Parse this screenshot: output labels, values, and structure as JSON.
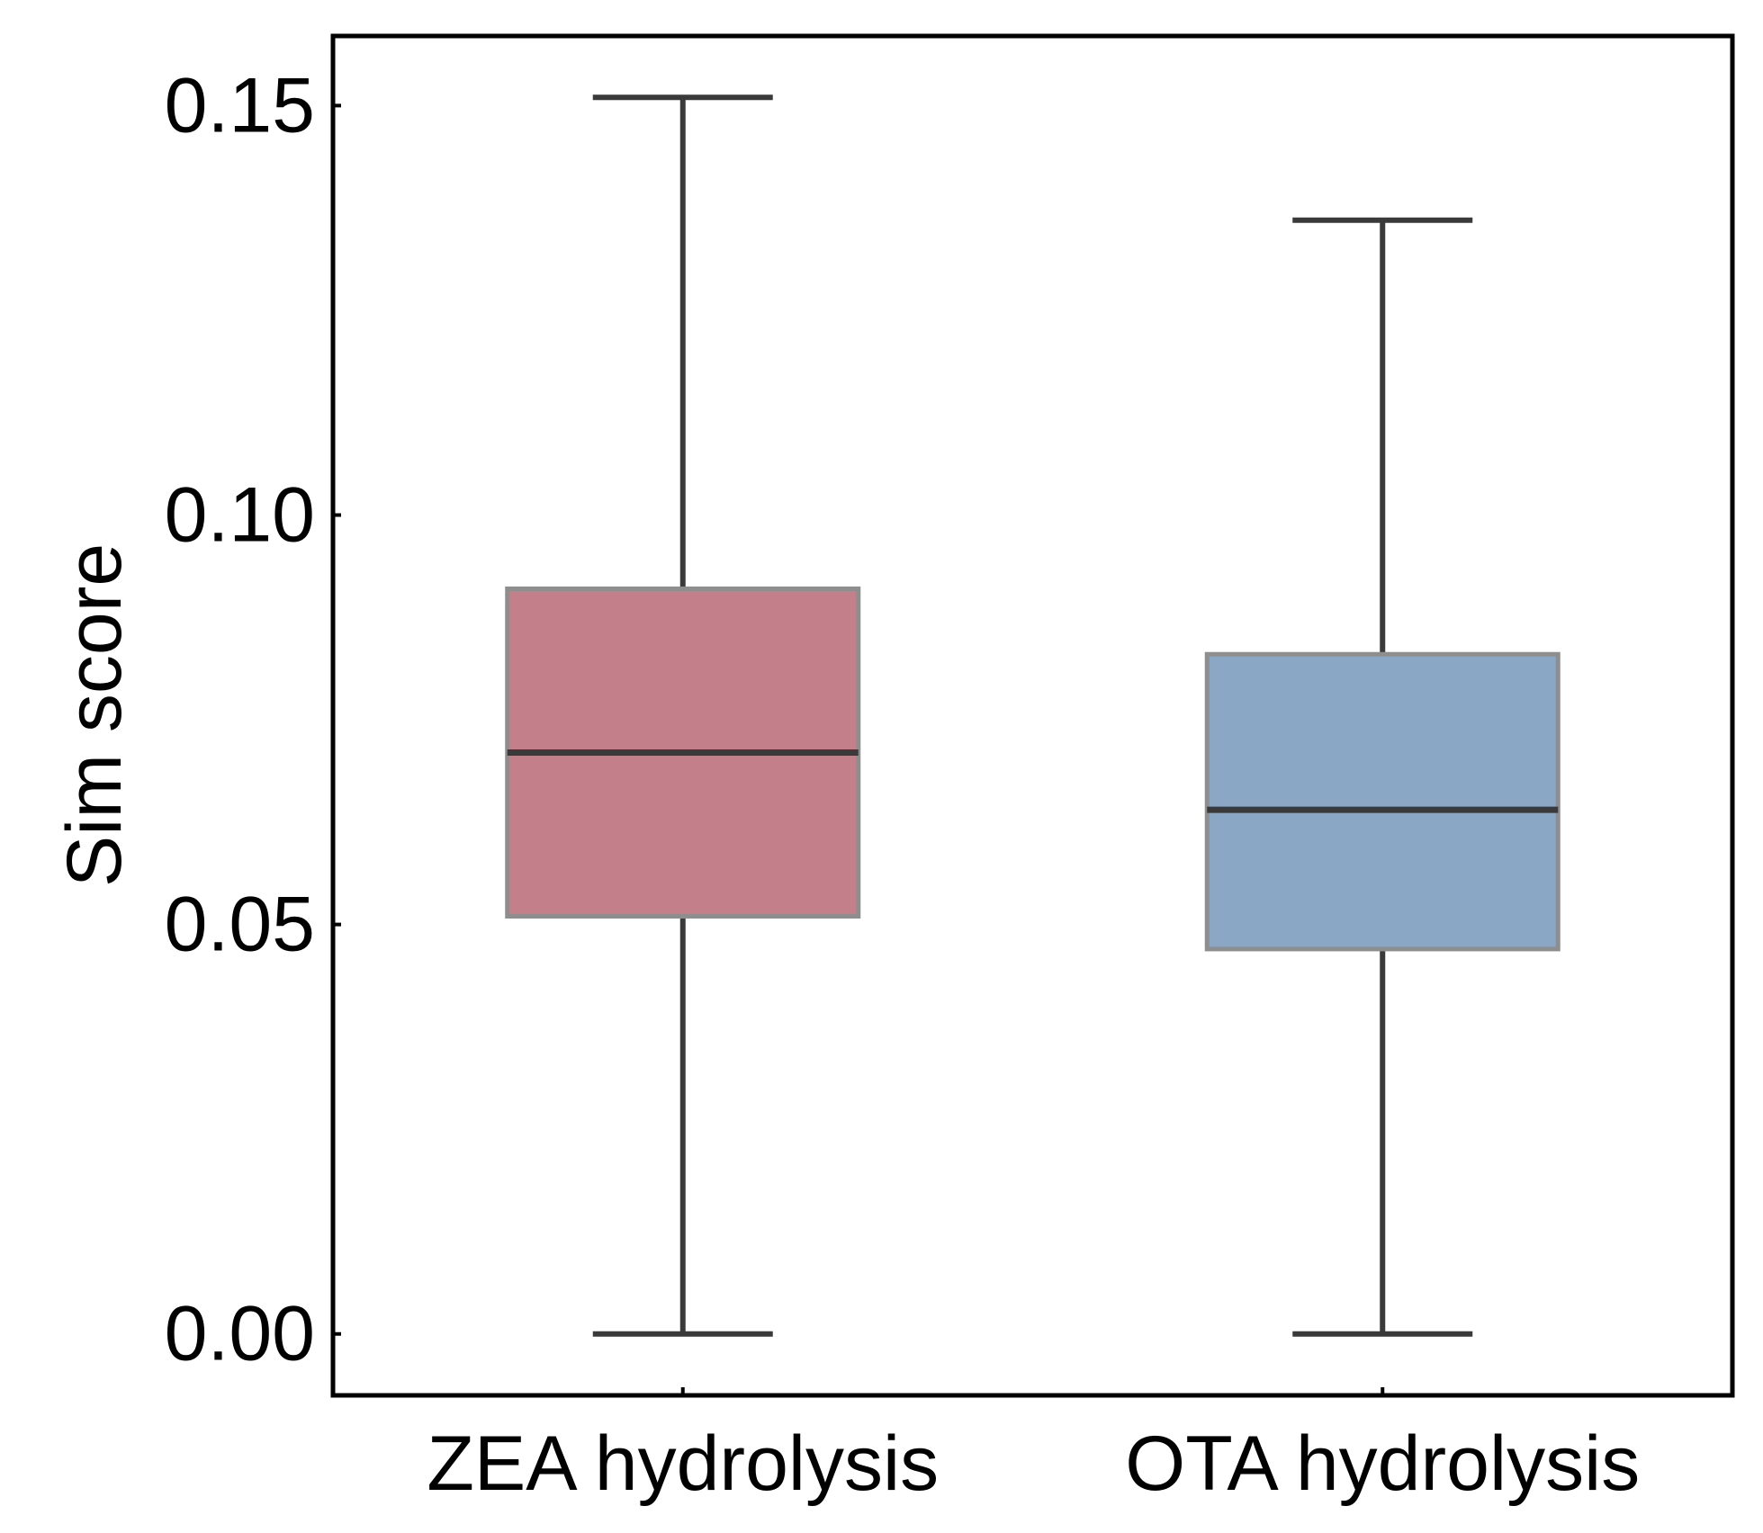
{
  "chart_data": {
    "type": "box",
    "title": "",
    "xlabel": "",
    "ylabel": "Sim score",
    "ylim": [
      -0.0075,
      0.1585
    ],
    "yticks": [
      0.0,
      0.05,
      0.1,
      0.15
    ],
    "ytick_labels": [
      "0.00",
      "0.05",
      "0.10",
      "0.15"
    ],
    "grid": false,
    "categories": [
      "ZEA hydrolysis",
      "OTA hydrolysis"
    ],
    "series": [
      {
        "whisker_low": 0.0,
        "q1": 0.051,
        "median": 0.071,
        "q3": 0.091,
        "whisker_high": 0.151,
        "color": "#c4808a"
      },
      {
        "whisker_low": 0.0,
        "q1": 0.047,
        "median": 0.064,
        "q3": 0.083,
        "whisker_high": 0.136,
        "color": "#8ba7c6"
      }
    ],
    "line_color": "#3a3a3a"
  }
}
